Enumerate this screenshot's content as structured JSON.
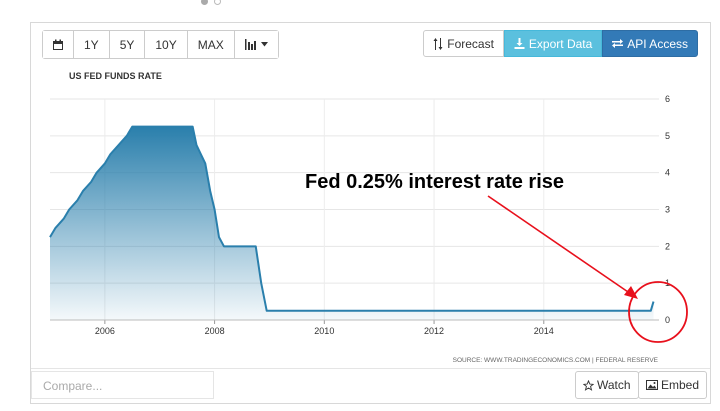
{
  "toolbar": {
    "calendar_icon": "calendar-icon",
    "ranges": [
      "1Y",
      "5Y",
      "10Y",
      "MAX"
    ],
    "chart_type_icon": "bar-chart-icon",
    "forecast_label": "Forecast",
    "export_label": "Export Data",
    "api_label": "API Access"
  },
  "footer": {
    "compare_placeholder": "Compare...",
    "watch_label": "Watch",
    "embed_label": "Embed"
  },
  "source_text": "SOURCE: WWW.TRADINGECONOMICS.COM | FEDERAL RESERVE",
  "annotation_text": "Fed 0.25% interest rate rise",
  "colors": {
    "line": "#2a7fac",
    "fill_top": "#2a7fac",
    "annotation": "#e8101c"
  },
  "chart_data": {
    "type": "area",
    "title": "US FED FUNDS RATE",
    "xlabel": "",
    "ylabel": "",
    "xlim": [
      2005.0,
      2016.1
    ],
    "ylim": [
      0,
      6
    ],
    "x_ticks": [
      2006,
      2008,
      2010,
      2012,
      2014
    ],
    "y_ticks": [
      0,
      1,
      2,
      3,
      4,
      5,
      6
    ],
    "grid": true,
    "x": [
      2005.0,
      2005.1,
      2005.25,
      2005.35,
      2005.5,
      2005.6,
      2005.75,
      2005.85,
      2006.0,
      2006.1,
      2006.25,
      2006.4,
      2006.5,
      2007.6,
      2007.67,
      2007.75,
      2007.83,
      2007.92,
      2008.0,
      2008.08,
      2008.17,
      2008.25,
      2008.33,
      2008.75,
      2008.85,
      2008.95,
      2015.9,
      2015.95,
      2016.0
    ],
    "y": [
      2.25,
      2.5,
      2.75,
      3.0,
      3.25,
      3.5,
      3.75,
      4.0,
      4.25,
      4.5,
      4.75,
      5.0,
      5.25,
      5.25,
      4.75,
      4.5,
      4.25,
      3.5,
      3.0,
      2.25,
      2.0,
      2.0,
      2.0,
      2.0,
      1.0,
      0.25,
      0.25,
      0.25,
      0.5
    ]
  }
}
